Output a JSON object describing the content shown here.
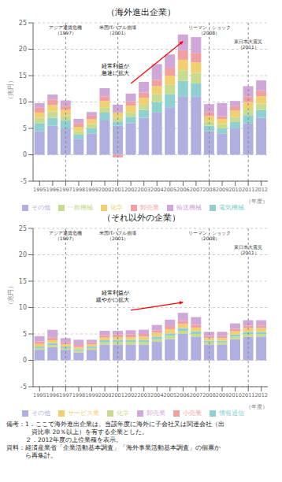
{
  "chart_data": [
    {
      "type": "bar",
      "title": "（海外進出企業）",
      "stacked": true,
      "grid": true,
      "legend": "bottom",
      "xlabel": "（年度）",
      "ylabel": "（兆円）",
      "categories": [
        1995,
        1996,
        1997,
        1998,
        1999,
        2000,
        2001,
        2002,
        2003,
        2004,
        2005,
        2006,
        2007,
        2008,
        2009,
        2010,
        2011,
        2012
      ],
      "series": [
        {
          "name": "その他",
          "color": "#b0b0e0",
          "values": [
            4.5,
            5.5,
            5.0,
            3.0,
            4.0,
            6.5,
            5.5,
            6.0,
            7.0,
            8.0,
            9.0,
            11.0,
            11.0,
            4.5,
            4.0,
            5.0,
            6.0,
            7.0
          ]
        },
        {
          "name": "電気機械",
          "color": "#90d0d0",
          "values": [
            1.5,
            1.5,
            1.5,
            0.8,
            1.0,
            1.5,
            0.8,
            1.2,
            1.5,
            2.0,
            2.5,
            3.0,
            2.5,
            1.0,
            1.0,
            1.2,
            1.5,
            1.5
          ]
        },
        {
          "name": "一般機械",
          "color": "#c8dc90",
          "values": [
            1.0,
            1.2,
            1.0,
            0.7,
            0.8,
            1.0,
            0.7,
            0.9,
            1.0,
            1.5,
            1.8,
            2.0,
            2.0,
            0.8,
            0.8,
            1.0,
            1.2,
            1.2
          ]
        },
        {
          "name": "化学",
          "color": "#f0d070",
          "values": [
            1.0,
            1.2,
            1.0,
            0.8,
            0.9,
            1.2,
            1.0,
            1.2,
            1.3,
            1.5,
            1.7,
            2.0,
            2.0,
            1.0,
            1.0,
            1.2,
            1.3,
            1.4
          ]
        },
        {
          "name": "卸売業",
          "color": "#f0a0a0",
          "values": [
            1.0,
            1.0,
            0.8,
            0.7,
            0.7,
            0.9,
            -0.5,
            0.8,
            1.0,
            1.2,
            1.5,
            1.8,
            1.8,
            0.8,
            0.5,
            0.8,
            1.0,
            1.0
          ]
        },
        {
          "name": "輸送機械",
          "color": "#d0a8d8",
          "values": [
            0.8,
            1.0,
            1.0,
            0.8,
            0.7,
            1.5,
            1.5,
            1.5,
            2.0,
            3.0,
            2.5,
            3.0,
            3.0,
            1.5,
            2.5,
            1.0,
            2.0,
            2.0
          ]
        }
      ],
      "ylim": [
        -5,
        25
      ],
      "yticks": [
        -5,
        0,
        5,
        10,
        15,
        20,
        25
      ],
      "events": [
        {
          "x": 1997,
          "text": [
            "アジア通貨危機",
            "（1997）"
          ]
        },
        {
          "x": 2001,
          "text": [
            "米国ITバブル崩壊",
            "（2001）"
          ]
        },
        {
          "x": 2008,
          "text": [
            "リーマン・ショック",
            "（2008）"
          ]
        },
        {
          "x": 2011,
          "text": [
            "東日本大震災",
            "（2011）"
          ]
        }
      ],
      "arrow": {
        "text": [
          "経常利益が",
          "急速に拡大"
        ],
        "from": [
          2002,
          13.5
        ],
        "to": [
          2006,
          21.5
        ],
        "color": "red"
      }
    },
    {
      "type": "bar",
      "title": "（それ以外の企業）",
      "stacked": true,
      "grid": true,
      "legend": "bottom",
      "xlabel": "（年度）",
      "ylabel": "（兆円）",
      "categories": [
        1995,
        1996,
        1997,
        1998,
        1999,
        2000,
        2001,
        2002,
        2003,
        2004,
        2005,
        2006,
        2007,
        2008,
        2009,
        2010,
        2011,
        2012
      ],
      "series": [
        {
          "name": "その他",
          "color": "#b0b0e0",
          "values": [
            2.0,
            2.5,
            2.0,
            1.5,
            2.0,
            3.0,
            3.0,
            3.0,
            3.0,
            3.5,
            4.0,
            5.0,
            4.5,
            3.0,
            3.0,
            4.0,
            4.5,
            4.5
          ]
        },
        {
          "name": "化学",
          "color": "#c8dc90",
          "values": [
            0.3,
            0.4,
            0.3,
            0.3,
            0.3,
            0.4,
            0.5,
            0.5,
            0.5,
            0.5,
            0.6,
            0.6,
            0.5,
            0.4,
            0.4,
            0.5,
            0.5,
            0.5
          ]
        },
        {
          "name": "情報通信",
          "color": "#90d0d0",
          "values": [
            0.3,
            0.4,
            0.3,
            0.3,
            0.3,
            0.4,
            0.4,
            0.4,
            0.4,
            0.5,
            0.5,
            0.5,
            0.5,
            0.3,
            0.3,
            0.4,
            0.4,
            0.4
          ]
        },
        {
          "name": "サービス業",
          "color": "#f0d070",
          "values": [
            0.5,
            0.5,
            0.4,
            0.4,
            0.4,
            0.5,
            0.5,
            0.5,
            0.6,
            0.7,
            0.8,
            0.8,
            0.7,
            0.5,
            0.5,
            0.6,
            0.7,
            0.7
          ]
        },
        {
          "name": "小売業",
          "color": "#f0a0a0",
          "values": [
            0.5,
            0.5,
            0.4,
            0.4,
            0.4,
            0.5,
            0.5,
            0.5,
            0.5,
            0.5,
            0.6,
            0.6,
            0.5,
            0.4,
            0.4,
            0.5,
            0.5,
            0.5
          ]
        },
        {
          "name": "卸売業",
          "color": "#d0a8d8",
          "values": [
            1.0,
            1.5,
            0.8,
            1.0,
            0.5,
            0.8,
            0.7,
            0.8,
            0.8,
            1.0,
            1.2,
            1.5,
            1.5,
            0.8,
            0.8,
            1.0,
            1.0,
            1.0
          ]
        }
      ],
      "ylim": [
        -5,
        25
      ],
      "yticks": [
        -5,
        0,
        5,
        10,
        15,
        20,
        25
      ],
      "events": [
        {
          "x": 1997,
          "text": [
            "アジア通貨危機",
            "（1997）"
          ]
        },
        {
          "x": 2001,
          "text": [
            "米国ITバブル崩壊",
            "（2001）"
          ]
        },
        {
          "x": 2008,
          "text": [
            "リーマン・ショック",
            "（2008）"
          ]
        },
        {
          "x": 2011,
          "text": [
            "東日本大震災",
            "（2011）"
          ]
        }
      ],
      "arrow": {
        "text": [
          "経常利益が",
          "緩やかに拡大"
        ],
        "from": [
          2002,
          9.5
        ],
        "to": [
          2006,
          11.0
        ],
        "color": "red"
      }
    }
  ],
  "footnote": [
    "備考：1．ここで海外進出企業は、当該年度に海外に子会社又は関連会社（出",
    "　　　　資比率 20％以上）を有する企業とした。",
    "　　　２．2012年度の上位業種を表示。",
    "資料：経済産業省「企業活動基本調査」「海外事業活動基本調査」の個票か",
    "　　　ら再集計。"
  ]
}
